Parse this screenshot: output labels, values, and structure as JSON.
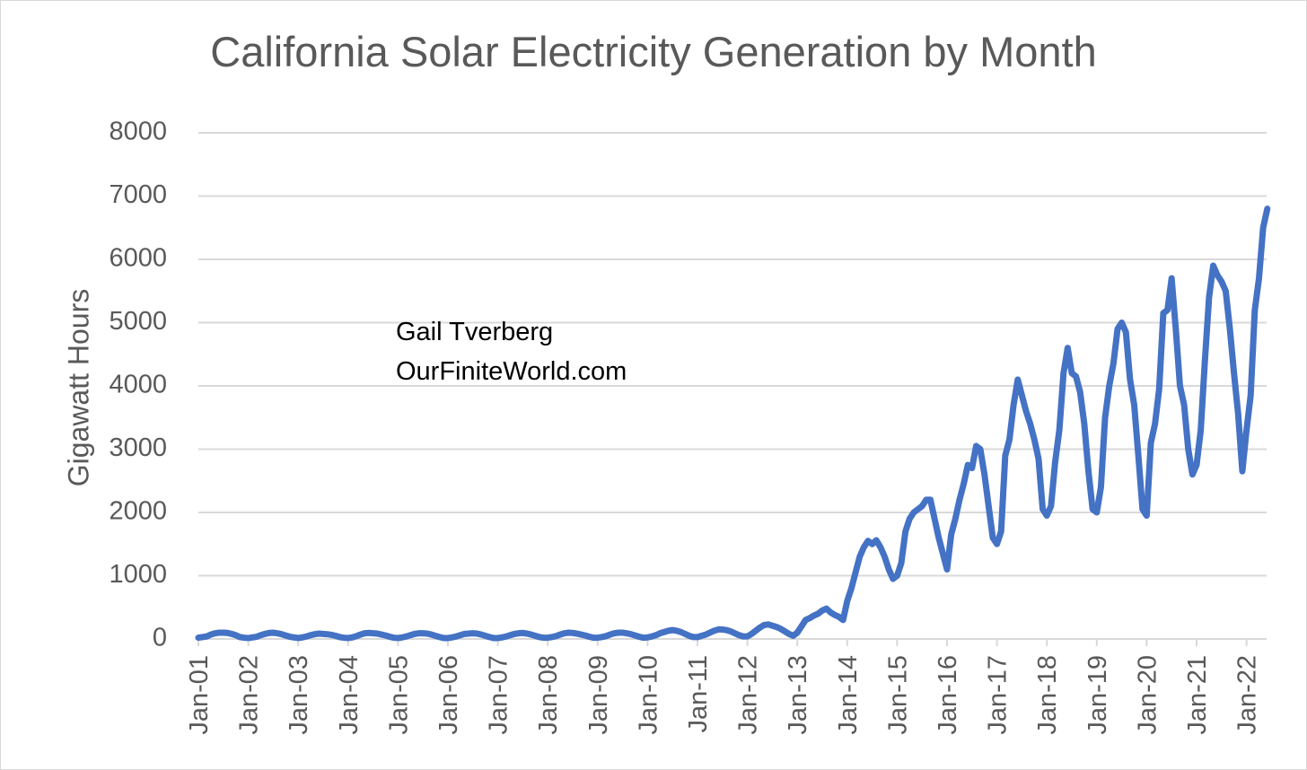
{
  "chart_data": {
    "type": "line",
    "title": "California Solar Electricity Generation by Month",
    "ylabel": "Gigawatt Hours",
    "xlabel": "",
    "ylim": [
      0,
      8000
    ],
    "yticks": [
      0,
      1000,
      2000,
      3000,
      4000,
      5000,
      6000,
      7000,
      8000
    ],
    "xticks": [
      "Jan-01",
      "Jan-02",
      "Jan-03",
      "Jan-04",
      "Jan-05",
      "Jan-06",
      "Jan-07",
      "Jan-08",
      "Jan-09",
      "Jan-10",
      "Jan-11",
      "Jan-12",
      "Jan-13",
      "Jan-14",
      "Jan-15",
      "Jan-16",
      "Jan-17",
      "Jan-18",
      "Jan-19",
      "Jan-20",
      "Jan-21",
      "Jan-22"
    ],
    "grid": true,
    "line_color": "#4472c4",
    "series": [
      {
        "x_start": "2001-01",
        "frequency": "monthly",
        "values": [
          20,
          30,
          40,
          70,
          90,
          100,
          100,
          95,
          80,
          60,
          30,
          20,
          15,
          25,
          35,
          60,
          80,
          95,
          100,
          90,
          75,
          55,
          35,
          25,
          15,
          25,
          40,
          60,
          75,
          85,
          80,
          75,
          65,
          50,
          30,
          20,
          15,
          25,
          45,
          70,
          90,
          95,
          90,
          85,
          70,
          55,
          35,
          20,
          15,
          25,
          40,
          60,
          80,
          90,
          90,
          85,
          70,
          50,
          30,
          15,
          15,
          25,
          40,
          60,
          80,
          85,
          90,
          85,
          70,
          50,
          30,
          15,
          15,
          25,
          40,
          60,
          80,
          90,
          95,
          85,
          70,
          50,
          30,
          20,
          20,
          30,
          45,
          70,
          90,
          100,
          95,
          85,
          70,
          55,
          35,
          20,
          20,
          30,
          45,
          70,
          90,
          100,
          100,
          90,
          75,
          55,
          35,
          20,
          25,
          40,
          60,
          90,
          110,
          130,
          140,
          130,
          110,
          80,
          50,
          30,
          30,
          50,
          70,
          100,
          130,
          150,
          150,
          140,
          120,
          90,
          60,
          40,
          40,
          80,
          130,
          180,
          220,
          230,
          210,
          190,
          160,
          120,
          80,
          50,
          100,
          200,
          300,
          330,
          370,
          400,
          450,
          480,
          420,
          380,
          350,
          300,
          600,
          800,
          1050,
          1300,
          1450,
          1550,
          1500,
          1560,
          1450,
          1300,
          1100,
          950,
          1000,
          1200,
          1700,
          1900,
          2000,
          2050,
          2100,
          2200,
          2200,
          1900,
          1600,
          1350,
          1100,
          1650,
          1900,
          2200,
          2450,
          2750,
          2700,
          3050,
          3000,
          2600,
          2100,
          1600,
          1500,
          1700,
          2900,
          3150,
          3700,
          4100,
          3850,
          3600,
          3400,
          3150,
          2850,
          2050,
          1950,
          2100,
          2800,
          3300,
          4200,
          4600,
          4200,
          4150,
          3900,
          3400,
          2650,
          2050,
          2000,
          2400,
          3500,
          4000,
          4350,
          4900,
          5000,
          4850,
          4100,
          3700,
          2900,
          2050,
          1950,
          3100,
          3400,
          3950,
          5150,
          5200,
          5700,
          4900,
          4000,
          3700,
          3000,
          2600,
          2750,
          3300,
          4400,
          5400,
          5900,
          5750,
          5650,
          5500,
          4900,
          4200,
          3550,
          2650,
          3300,
          3850,
          5200,
          5700,
          6500,
          6800
        ]
      }
    ],
    "annotations": [
      "Gail Tverberg",
      "OurFiniteWorld.com"
    ]
  }
}
